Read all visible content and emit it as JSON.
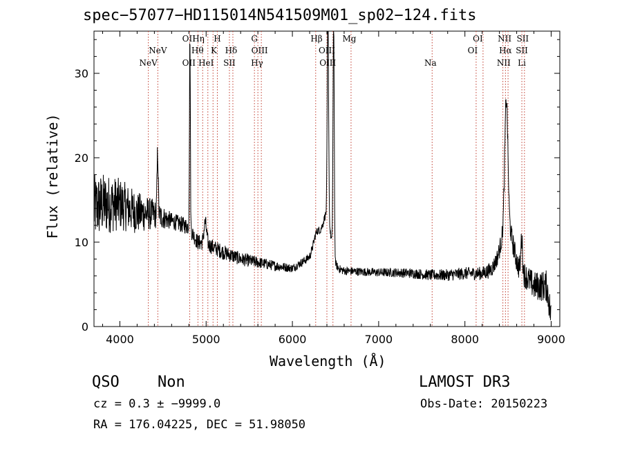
{
  "chart_data": {
    "type": "line",
    "title": "spec−57077−HD115014N541509M01_sp02−124.fits",
    "xlabel": "Wavelength (Å)",
    "ylabel": "Flux (relative)",
    "xlim": [
      3700,
      9100
    ],
    "ylim": [
      0,
      35
    ],
    "xticks": [
      4000,
      5000,
      6000,
      7000,
      8000,
      9000
    ],
    "yticks": [
      0,
      10,
      20,
      30
    ],
    "grid": false,
    "continuum_nodes": {
      "x": [
        3700,
        3800,
        4000,
        4200,
        4400,
        4600,
        4800,
        4900,
        5000,
        5200,
        5400,
        5600,
        5800,
        6000,
        6200,
        6300,
        6380,
        6500,
        6600,
        6800,
        7000,
        7200,
        7400,
        7600,
        7800,
        8000,
        8200,
        8350,
        8700,
        8800,
        8950,
        9000
      ],
      "y": [
        14,
        14.5,
        14.5,
        13.5,
        13.3,
        12.5,
        11.8,
        10,
        9.8,
        8.8,
        8.0,
        7.6,
        7.2,
        6.9,
        8.2,
        9.5,
        11,
        6.8,
        6.6,
        6.5,
        6.4,
        6.4,
        6.3,
        6.1,
        6.1,
        6.3,
        6.3,
        6.8,
        6.0,
        4.8,
        4.8,
        1.0
      ]
    },
    "noise_amplitude": [
      {
        "x": 3700,
        "amp": 4.0
      },
      {
        "x": 4200,
        "amp": 2.5
      },
      {
        "x": 4600,
        "amp": 1.0
      },
      {
        "x": 5200,
        "amp": 0.9
      },
      {
        "x": 6000,
        "amp": 0.5
      },
      {
        "x": 7000,
        "amp": 0.5
      },
      {
        "x": 8200,
        "amp": 0.8
      },
      {
        "x": 8750,
        "amp": 1.6
      },
      {
        "x": 9000,
        "amp": 2.0
      }
    ],
    "emission_features": [
      {
        "center": 4438,
        "peak": 7.5,
        "sigma": 7
      },
      {
        "center": 4812,
        "peak": 23,
        "sigma": 5
      },
      {
        "center": 4990,
        "peak": 2.5,
        "sigma": 15
      },
      {
        "center": 6280,
        "peak": 1.8,
        "sigma": 35
      },
      {
        "center": 6410,
        "peak": 2.5,
        "sigma": 55
      },
      {
        "center": 6412,
        "peak": 25,
        "sigma": 8
      },
      {
        "center": 6478,
        "peak": 28,
        "sigma": 7
      },
      {
        "center": 8490,
        "peak": 5.5,
        "sigma": 70
      },
      {
        "center": 8480,
        "peak": 15,
        "sigma": 18
      },
      {
        "center": 8658,
        "peak": 4,
        "sigma": 10
      }
    ],
    "spectral_lines": [
      {
        "name": "NeV",
        "wavelength": 4330,
        "row": 2
      },
      {
        "name": "NeV",
        "wavelength": 4440,
        "row": 1
      },
      {
        "name": "OII",
        "wavelength": 4800,
        "row": 0
      },
      {
        "name": "OII",
        "wavelength": 4800,
        "row": 3
      },
      {
        "name": "Hη",
        "wavelength": 4910,
        "row": 0
      },
      {
        "name": "Hθ",
        "wavelength": 4900,
        "row": 1
      },
      {
        "name": "HeI",
        "wavelength": 5000,
        "row": 3
      },
      {
        "name": "H",
        "wavelength": 5130,
        "row": 0
      },
      {
        "name": "K",
        "wavelength": 5090,
        "row": 1
      },
      {
        "name": "Hδ",
        "wavelength": 5290,
        "row": 1
      },
      {
        "name": "SII",
        "wavelength": 5270,
        "row": 2
      },
      {
        "name": "G",
        "wavelength": 5560,
        "row": 0
      },
      {
        "name": "OIII",
        "wavelength": 5620,
        "row": 1
      },
      {
        "name": "Hγ",
        "wavelength": 5590,
        "row": 2
      },
      {
        "name": "Hβ",
        "wavelength": 6280,
        "row": 0
      },
      {
        "name": "OIII",
        "wavelength": 6400,
        "row": 1
      },
      {
        "name": "OIII",
        "wavelength": 6410,
        "row": 2
      },
      {
        "name": "Mg",
        "wavelength": 6660,
        "row": 0
      },
      {
        "name": "Na",
        "wavelength": 7600,
        "row": 2
      },
      {
        "name": "OI",
        "wavelength": 8150,
        "row": 0
      },
      {
        "name": "OI",
        "wavelength": 8090,
        "row": 1
      },
      {
        "name": "NII",
        "wavelength": 8460,
        "row": 0
      },
      {
        "name": "Hα",
        "wavelength": 8470,
        "row": 1
      },
      {
        "name": "NII",
        "wavelength": 8450,
        "row": 2
      },
      {
        "name": "SII",
        "wavelength": 8670,
        "row": 0
      },
      {
        "name": "SII",
        "wavelength": 8660,
        "row": 1
      },
      {
        "name": "Li",
        "wavelength": 8660,
        "row": 2
      }
    ],
    "line_marker_wavelengths": [
      4330,
      4440,
      4810,
      4905,
      4960,
      5020,
      5080,
      5130,
      5270,
      5310,
      5560,
      5600,
      5640,
      6270,
      6400,
      6470,
      6680,
      7620,
      8130,
      8210,
      8440,
      8470,
      8500,
      8660,
      8690
    ]
  },
  "info": {
    "classification": "QSO",
    "subclass": "Non",
    "survey": "LAMOST DR3",
    "redshift": "cz = 0.3 ± −9999.0",
    "obs_date": "Obs-Date: 20150223",
    "coords": "RA = 176.04225, DEC =  51.98050"
  },
  "colors": {
    "spectrum": "#000000",
    "markers": "#c0392b",
    "background": "#ffffff"
  }
}
